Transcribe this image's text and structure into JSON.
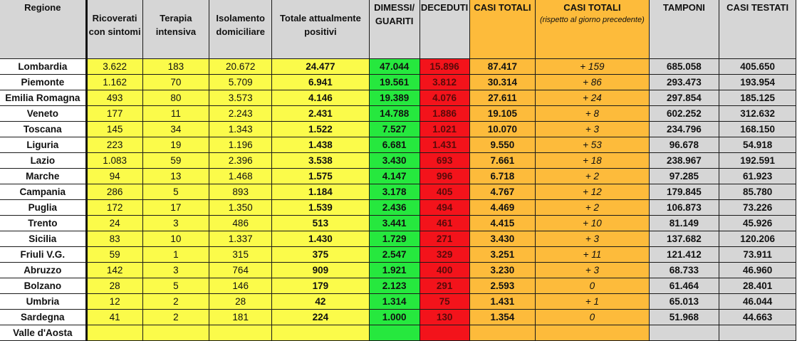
{
  "table": {
    "headers": {
      "regione": "Regione",
      "ricoverati": "Ricoverati con sintomi",
      "terapia": "Terapia intensiva",
      "isolamento": "Isolamento domiciliare",
      "totale": "Totale attualmente positivi",
      "dimessi": "DIMESSI/ GUARITI",
      "deceduti": "DECEDUTI",
      "casi_totali": "CASI TOTALI",
      "casi_totali_delta": "CASI  TOTALI",
      "casi_totali_delta_sub": "(rispetto al giorno precedente)",
      "tamponi": "TAMPONI",
      "casi_testati": "CASI TESTATI"
    },
    "colors": {
      "header_gray": "#d6d6d6",
      "yellow": "#fbfb4a",
      "green": "#26e83e",
      "red": "#f3131b",
      "orange": "#fdbb3b",
      "gray": "#d6d6d6"
    },
    "rows": [
      {
        "regione": "Lombardia",
        "ricoverati": "3.622",
        "terapia": "183",
        "isolamento": "20.672",
        "totale": "24.477",
        "dimessi": "47.044",
        "deceduti": "15.896",
        "casi_totali": "87.417",
        "delta": "+ 159",
        "tamponi": "685.058",
        "casi_testati": "405.650"
      },
      {
        "regione": "Piemonte",
        "ricoverati": "1.162",
        "terapia": "70",
        "isolamento": "5.709",
        "totale": "6.941",
        "dimessi": "19.561",
        "deceduti": "3.812",
        "casi_totali": "30.314",
        "delta": "+ 86",
        "tamponi": "293.473",
        "casi_testati": "193.954"
      },
      {
        "regione": "Emilia Romagna",
        "ricoverati": "493",
        "terapia": "80",
        "isolamento": "3.573",
        "totale": "4.146",
        "dimessi": "19.389",
        "deceduti": "4.076",
        "casi_totali": "27.611",
        "delta": "+ 24",
        "tamponi": "297.854",
        "casi_testati": "185.125"
      },
      {
        "regione": "Veneto",
        "ricoverati": "177",
        "terapia": "11",
        "isolamento": "2.243",
        "totale": "2.431",
        "dimessi": "14.788",
        "deceduti": "1.886",
        "casi_totali": "19.105",
        "delta": "+ 8",
        "tamponi": "602.252",
        "casi_testati": "312.632"
      },
      {
        "regione": "Toscana",
        "ricoverati": "145",
        "terapia": "34",
        "isolamento": "1.343",
        "totale": "1.522",
        "dimessi": "7.527",
        "deceduti": "1.021",
        "casi_totali": "10.070",
        "delta": "+ 3",
        "tamponi": "234.796",
        "casi_testati": "168.150"
      },
      {
        "regione": "Liguria",
        "ricoverati": "223",
        "terapia": "19",
        "isolamento": "1.196",
        "totale": "1.438",
        "dimessi": "6.681",
        "deceduti": "1.431",
        "casi_totali": "9.550",
        "delta": "+ 53",
        "tamponi": "96.678",
        "casi_testati": "54.918"
      },
      {
        "regione": "Lazio",
        "ricoverati": "1.083",
        "terapia": "59",
        "isolamento": "2.396",
        "totale": "3.538",
        "dimessi": "3.430",
        "deceduti": "693",
        "casi_totali": "7.661",
        "delta": "+ 18",
        "tamponi": "238.967",
        "casi_testati": "192.591"
      },
      {
        "regione": "Marche",
        "ricoverati": "94",
        "terapia": "13",
        "isolamento": "1.468",
        "totale": "1.575",
        "dimessi": "4.147",
        "deceduti": "996",
        "casi_totali": "6.718",
        "delta": "+ 2",
        "tamponi": "97.285",
        "casi_testati": "61.923"
      },
      {
        "regione": "Campania",
        "ricoverati": "286",
        "terapia": "5",
        "isolamento": "893",
        "totale": "1.184",
        "dimessi": "3.178",
        "deceduti": "405",
        "casi_totali": "4.767",
        "delta": "+ 12",
        "tamponi": "179.845",
        "casi_testati": "85.780"
      },
      {
        "regione": "Puglia",
        "ricoverati": "172",
        "terapia": "17",
        "isolamento": "1.350",
        "totale": "1.539",
        "dimessi": "2.436",
        "deceduti": "494",
        "casi_totali": "4.469",
        "delta": "+ 2",
        "tamponi": "106.873",
        "casi_testati": "73.226"
      },
      {
        "regione": "Trento",
        "ricoverati": "24",
        "terapia": "3",
        "isolamento": "486",
        "totale": "513",
        "dimessi": "3.441",
        "deceduti": "461",
        "casi_totali": "4.415",
        "delta": "+ 10",
        "tamponi": "81.149",
        "casi_testati": "45.926"
      },
      {
        "regione": "Sicilia",
        "ricoverati": "83",
        "terapia": "10",
        "isolamento": "1.337",
        "totale": "1.430",
        "dimessi": "1.729",
        "deceduti": "271",
        "casi_totali": "3.430",
        "delta": "+ 3",
        "tamponi": "137.682",
        "casi_testati": "120.206"
      },
      {
        "regione": "Friuli V.G.",
        "ricoverati": "59",
        "terapia": "1",
        "isolamento": "315",
        "totale": "375",
        "dimessi": "2.547",
        "deceduti": "329",
        "casi_totali": "3.251",
        "delta": "+ 11",
        "tamponi": "121.412",
        "casi_testati": "73.911"
      },
      {
        "regione": "Abruzzo",
        "ricoverati": "142",
        "terapia": "3",
        "isolamento": "764",
        "totale": "909",
        "dimessi": "1.921",
        "deceduti": "400",
        "casi_totali": "3.230",
        "delta": "+ 3",
        "tamponi": "68.733",
        "casi_testati": "46.960"
      },
      {
        "regione": "Bolzano",
        "ricoverati": "28",
        "terapia": "5",
        "isolamento": "146",
        "totale": "179",
        "dimessi": "2.123",
        "deceduti": "291",
        "casi_totali": "2.593",
        "delta": "0",
        "tamponi": "61.464",
        "casi_testati": "28.401"
      },
      {
        "regione": "Umbria",
        "ricoverati": "12",
        "terapia": "2",
        "isolamento": "28",
        "totale": "42",
        "dimessi": "1.314",
        "deceduti": "75",
        "casi_totali": "1.431",
        "delta": "+ 1",
        "tamponi": "65.013",
        "casi_testati": "46.044"
      },
      {
        "regione": "Sardegna",
        "ricoverati": "41",
        "terapia": "2",
        "isolamento": "181",
        "totale": "224",
        "dimessi": "1.000",
        "deceduti": "130",
        "casi_totali": "1.354",
        "delta": "0",
        "tamponi": "51.968",
        "casi_testati": "44.663"
      },
      {
        "regione": "Valle d'Aosta",
        "ricoverati": "",
        "terapia": "",
        "isolamento": "",
        "totale": "",
        "dimessi": "",
        "deceduti": "",
        "casi_totali": "",
        "delta": "",
        "tamponi": "",
        "casi_testati": ""
      }
    ]
  }
}
